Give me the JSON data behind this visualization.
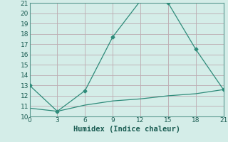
{
  "xlabel": "Humidex (Indice chaleur)",
  "line1_x": [
    0,
    3,
    6,
    9,
    12,
    15,
    18,
    21
  ],
  "line1_y": [
    13,
    10.5,
    12.5,
    17.7,
    21.2,
    21.0,
    16.5,
    12.6
  ],
  "line2_x": [
    0,
    3,
    6,
    9,
    12,
    15,
    18,
    21
  ],
  "line2_y": [
    10.8,
    10.5,
    11.1,
    11.5,
    11.7,
    12.0,
    12.2,
    12.6
  ],
  "line_color": "#2e8b7a",
  "bg_color": "#d4ede8",
  "grid_color_major": "#b8d8d2",
  "grid_color_minor": "#c8e4df",
  "marker": "D",
  "marker_size": 2.5,
  "xlim": [
    0,
    21
  ],
  "ylim": [
    10,
    21
  ],
  "xticks": [
    0,
    3,
    6,
    9,
    12,
    15,
    18,
    21
  ],
  "yticks": [
    10,
    11,
    12,
    13,
    14,
    15,
    16,
    17,
    18,
    19,
    20,
    21
  ],
  "tick_label_fontsize": 6.5,
  "xlabel_fontsize": 7.5,
  "line_width": 0.9
}
